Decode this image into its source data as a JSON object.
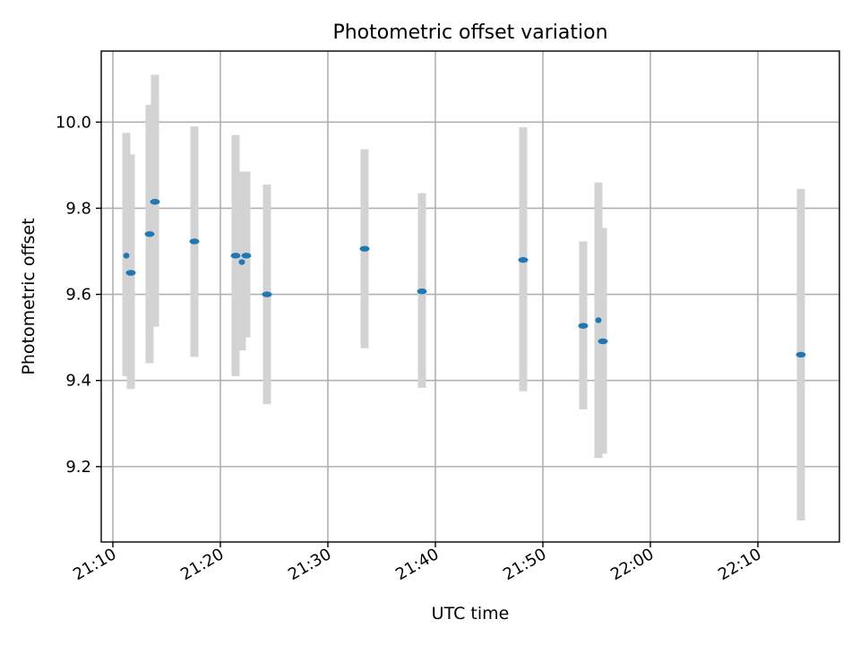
{
  "chart_data": {
    "type": "scatter",
    "title": "Photometric offset variation",
    "xlabel": "UTC time",
    "ylabel": "Photometric offset",
    "xlim": [
      "21:08:55",
      "22:17:35"
    ],
    "ylim": [
      9.025,
      10.165
    ],
    "grid": true,
    "x_ticks": [
      "21:10",
      "21:20",
      "21:30",
      "21:40",
      "21:50",
      "22:00",
      "22:10"
    ],
    "y_ticks": [
      "9.2",
      "9.4",
      "9.6",
      "9.8",
      "10.0"
    ],
    "colors": {
      "marker": "#1f77b4",
      "errorbar": "#d3d3d3",
      "grid": "#b0b0b0"
    },
    "series": [
      {
        "points": [
          {
            "x": "21:11:15",
            "y": 9.69,
            "ylow": 9.41,
            "yhigh": 9.975,
            "span_s": 10
          },
          {
            "x": "21:11:40",
            "y": 9.65,
            "ylow": 9.38,
            "yhigh": 9.925,
            "span_s": 30
          },
          {
            "x": "21:13:25",
            "y": 9.74,
            "ylow": 9.44,
            "yhigh": 10.04,
            "span_s": 30
          },
          {
            "x": "21:13:55",
            "y": 9.815,
            "ylow": 9.525,
            "yhigh": 10.11,
            "span_s": 30
          },
          {
            "x": "21:17:35",
            "y": 9.723,
            "ylow": 9.455,
            "yhigh": 9.99,
            "span_s": 30
          },
          {
            "x": "21:21:25",
            "y": 9.69,
            "ylow": 9.41,
            "yhigh": 9.97,
            "span_s": 30
          },
          {
            "x": "21:22:00",
            "y": 9.675,
            "ylow": 9.47,
            "yhigh": 9.885,
            "span_s": 10
          },
          {
            "x": "21:22:25",
            "y": 9.69,
            "ylow": 9.5,
            "yhigh": 9.885,
            "span_s": 30
          },
          {
            "x": "21:24:20",
            "y": 9.6,
            "ylow": 9.345,
            "yhigh": 9.855,
            "span_s": 30
          },
          {
            "x": "21:33:25",
            "y": 9.706,
            "ylow": 9.475,
            "yhigh": 9.937,
            "span_s": 30
          },
          {
            "x": "21:38:45",
            "y": 9.607,
            "ylow": 9.383,
            "yhigh": 9.835,
            "span_s": 30
          },
          {
            "x": "21:48:10",
            "y": 9.68,
            "ylow": 9.375,
            "yhigh": 9.988,
            "span_s": 30
          },
          {
            "x": "21:53:45",
            "y": 9.527,
            "ylow": 9.333,
            "yhigh": 9.723,
            "span_s": 30
          },
          {
            "x": "21:55:10",
            "y": 9.54,
            "ylow": 9.22,
            "yhigh": 9.86,
            "span_s": 10
          },
          {
            "x": "21:55:35",
            "y": 9.491,
            "ylow": 9.23,
            "yhigh": 9.754,
            "span_s": 30
          },
          {
            "x": "22:14:00",
            "y": 9.46,
            "ylow": 9.075,
            "yhigh": 9.845,
            "span_s": 30
          }
        ]
      }
    ]
  }
}
